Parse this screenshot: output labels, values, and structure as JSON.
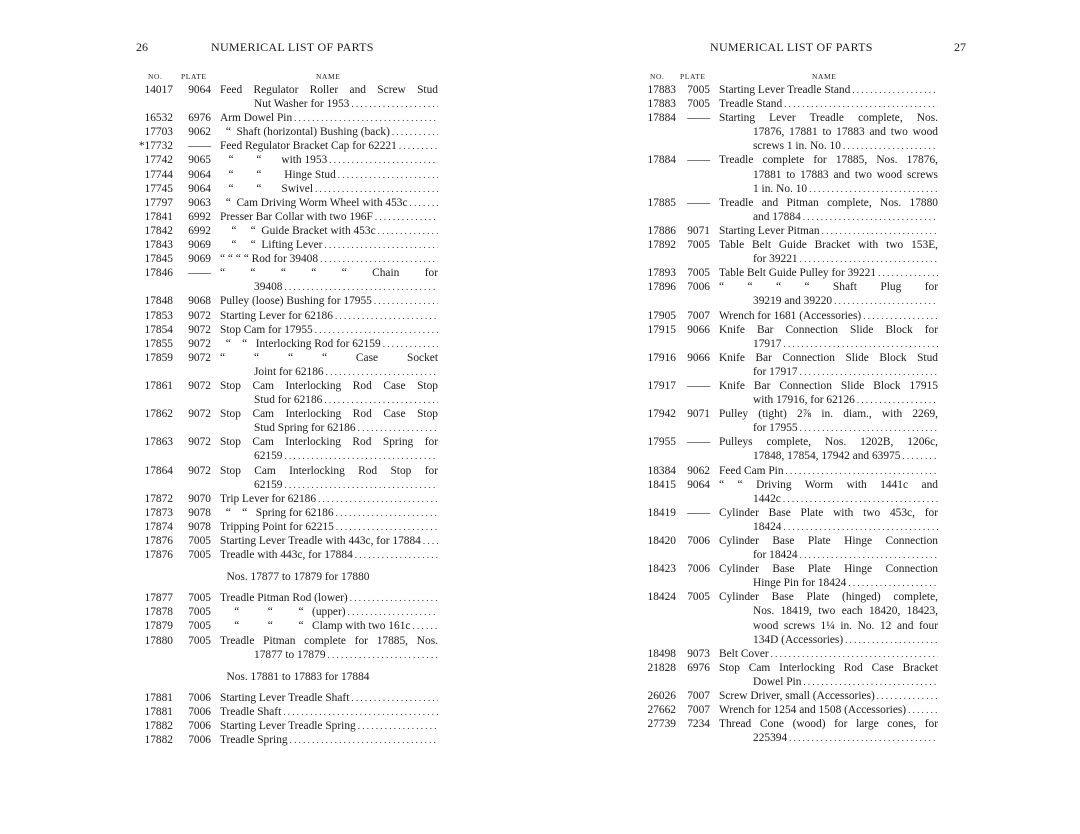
{
  "left": {
    "page_number": "26",
    "title": "NUMERICAL LIST OF PARTS",
    "headers": {
      "no": "NO.",
      "plate": "PLATE",
      "name": "NAME"
    },
    "rows": [
      {
        "no": "14017",
        "plate": "9064",
        "lines": [
          "Feed Regulator Roller and Screw Stud",
          "Nut Washer for 1953"
        ]
      },
      {
        "no": "16532",
        "plate": "6976",
        "lines": [
          "Arm Dowel Pin"
        ]
      },
      {
        "no": "17703",
        "plate": "9062",
        "lines": [
          "  “  Shaft (horizontal) Bushing (back)"
        ]
      },
      {
        "no": "*17732",
        "plate": "——",
        "lines": [
          "Feed Regulator Bracket Cap for 62221"
        ]
      },
      {
        "no": "17742",
        "plate": "9065",
        "lines": [
          "   “        “       with 1953"
        ]
      },
      {
        "no": "17744",
        "plate": "9064",
        "lines": [
          "   “        “        Hinge Stud"
        ]
      },
      {
        "no": "17745",
        "plate": "9064",
        "lines": [
          "   “        “       Swivel"
        ]
      },
      {
        "no": "17797",
        "plate": "9063",
        "lines": [
          "  “  Cam Driving Worm Wheel with 453c"
        ]
      },
      {
        "no": "17841",
        "plate": "6992",
        "lines": [
          "Presser Bar Collar with two 196F"
        ]
      },
      {
        "no": "17842",
        "plate": "6992",
        "lines": [
          "    “     “  Guide Bracket with 453c"
        ]
      },
      {
        "no": "17843",
        "plate": "9069",
        "lines": [
          "    “     “  Lifting Lever"
        ]
      },
      {
        "no": "17845",
        "plate": "9069",
        "lines": [
          "“ “ “ “ Rod for 39408"
        ]
      },
      {
        "no": "17846",
        "plate": "——",
        "lines": [
          "“ “ “ “ “ Chain for",
          "39408"
        ]
      },
      {
        "no": "17848",
        "plate": "9068",
        "lines": [
          "Pulley (loose) Bushing for 17955"
        ]
      },
      {
        "no": "17853",
        "plate": "9072",
        "lines": [
          "Starting Lever for 62186"
        ]
      },
      {
        "no": "17854",
        "plate": "9072",
        "lines": [
          "Stop Cam for 17955"
        ]
      },
      {
        "no": "17855",
        "plate": "9072",
        "lines": [
          "  “    “   Interlocking Rod for 62159"
        ]
      },
      {
        "no": "17859",
        "plate": "9072",
        "lines": [
          "“ “ “ “ Case Socket",
          "Joint for 62186"
        ]
      },
      {
        "no": "17861",
        "plate": "9072",
        "lines": [
          "Stop Cam Interlocking Rod Case Stop",
          "Stud for 62186"
        ]
      },
      {
        "no": "17862",
        "plate": "9072",
        "lines": [
          "Stop Cam Interlocking Rod Case Stop",
          "Stud Spring for 62186"
        ]
      },
      {
        "no": "17863",
        "plate": "9072",
        "lines": [
          "Stop Cam Interlocking Rod Spring for",
          "62159"
        ]
      },
      {
        "no": "17864",
        "plate": "9072",
        "lines": [
          "Stop Cam Interlocking Rod Stop for",
          "62159"
        ]
      },
      {
        "no": "17872",
        "plate": "9070",
        "lines": [
          "Trip Lever for 62186"
        ]
      },
      {
        "no": "17873",
        "plate": "9078",
        "lines": [
          "  “    “   Spring for 62186"
        ]
      },
      {
        "no": "17874",
        "plate": "9078",
        "lines": [
          "Tripping Point for 62215"
        ]
      },
      {
        "no": "17876",
        "plate": "7005",
        "lines": [
          "Starting Lever Treadle with 443c, for 17884"
        ]
      },
      {
        "no": "17876",
        "plate": "7005",
        "lines": [
          "Treadle with 443c, for 17884"
        ]
      },
      {
        "section": "Nos. 17877 to 17879 for 17880"
      },
      {
        "no": "17877",
        "plate": "7005",
        "lines": [
          "Treadle Pitman Rod (lower)"
        ]
      },
      {
        "no": "17878",
        "plate": "7005",
        "lines": [
          "     “          “         “   (upper)"
        ]
      },
      {
        "no": "17879",
        "plate": "7005",
        "lines": [
          "     “          “         “   Clamp with two 161c"
        ]
      },
      {
        "no": "17880",
        "plate": "7005",
        "lines": [
          "Treadle Pitman complete for 17885, Nos.",
          "17877 to 17879"
        ]
      },
      {
        "section": "Nos. 17881 to 17883 for 17884"
      },
      {
        "no": "17881",
        "plate": "7006",
        "lines": [
          "Starting Lever Treadle Shaft"
        ]
      },
      {
        "no": "17881",
        "plate": "7006",
        "lines": [
          "Treadle Shaft"
        ]
      },
      {
        "no": "17882",
        "plate": "7006",
        "lines": [
          "Starting Lever Treadle Spring"
        ]
      },
      {
        "no": "17882",
        "plate": "7006",
        "lines": [
          "Treadle Spring"
        ]
      }
    ]
  },
  "right": {
    "page_number": "27",
    "title": "NUMERICAL LIST OF PARTS",
    "headers": {
      "no": "NO.",
      "plate": "PLATE",
      "name": "NAME"
    },
    "rows": [
      {
        "no": "17883",
        "plate": "7005",
        "lines": [
          "Starting Lever Treadle Stand"
        ]
      },
      {
        "no": "17883",
        "plate": "7005",
        "lines": [
          "Treadle Stand"
        ]
      },
      {
        "no": "17884",
        "plate": "——",
        "lines": [
          "Starting Lever Treadle complete, Nos.",
          "17876, 17881 to 17883 and two wood",
          "screws 1 in. No. 10"
        ]
      },
      {
        "no": "17884",
        "plate": "——",
        "lines": [
          "Treadle complete for 17885, Nos. 17876,",
          "17881 to 17883 and two wood screws",
          "1 in. No. 10"
        ]
      },
      {
        "no": "17885",
        "plate": "——",
        "lines": [
          "Treadle and Pitman complete, Nos. 17880",
          "and 17884"
        ]
      },
      {
        "no": "17886",
        "plate": "9071",
        "lines": [
          "Starting Lever Pitman"
        ]
      },
      {
        "no": "17892",
        "plate": "7005",
        "lines": [
          "Table Belt Guide Bracket with two 153E,",
          "for 39221"
        ]
      },
      {
        "no": "17893",
        "plate": "7005",
        "lines": [
          "Table Belt Guide Pulley for 39221"
        ]
      },
      {
        "no": "17896",
        "plate": "7006",
        "lines": [
          "“ “ “ “ Shaft Plug for",
          "39219 and 39220"
        ]
      },
      {
        "no": "17905",
        "plate": "7007",
        "lines": [
          "Wrench for 1681 (Accessories)"
        ]
      },
      {
        "no": "17915",
        "plate": "9066",
        "lines": [
          "Knife Bar Connection Slide Block for",
          "17917"
        ]
      },
      {
        "no": "17916",
        "plate": "9066",
        "lines": [
          "Knife Bar Connection Slide Block Stud",
          "for 17917"
        ]
      },
      {
        "no": "17917",
        "plate": "——",
        "lines": [
          "Knife Bar Connection Slide Block 17915",
          "with 17916, for 62126"
        ]
      },
      {
        "no": "17942",
        "plate": "9071",
        "lines": [
          "Pulley (tight) 2⅞ in. diam., with 2269,",
          "for 17955"
        ]
      },
      {
        "no": "17955",
        "plate": "——",
        "lines": [
          "Pulleys complete, Nos. 1202B, 1206c,",
          "17848, 17854, 17942 and 63975"
        ]
      },
      {
        "no": "18384",
        "plate": "9062",
        "lines": [
          "Feed Cam Pin"
        ]
      },
      {
        "no": "18415",
        "plate": "9064",
        "lines": [
          "“ “ Driving Worm with 1441c and",
          "1442c"
        ]
      },
      {
        "no": "18419",
        "plate": "——",
        "lines": [
          "Cylinder Base Plate with two 453c, for",
          "18424"
        ]
      },
      {
        "no": "18420",
        "plate": "7006",
        "lines": [
          "Cylinder Base Plate Hinge Connection",
          "for 18424"
        ]
      },
      {
        "no": "18423",
        "plate": "7006",
        "lines": [
          "Cylinder Base Plate Hinge Connection",
          "Hinge Pin for 18424"
        ]
      },
      {
        "no": "18424",
        "plate": "7005",
        "lines": [
          "Cylinder Base Plate (hinged) complete,",
          "Nos. 18419, two each 18420, 18423, three",
          "wood screws 1¼ in. No. 12 and four",
          "134D (Accessories)"
        ]
      },
      {
        "no": "18498",
        "plate": "9073",
        "lines": [
          "Belt Cover"
        ]
      },
      {
        "no": "21828",
        "plate": "6976",
        "lines": [
          "Stop Cam Interlocking Rod Case Bracket",
          "Dowel Pin"
        ]
      },
      {
        "no": "26026",
        "plate": "7007",
        "lines": [
          "Screw Driver, small (Accessories)"
        ]
      },
      {
        "no": "27662",
        "plate": "7007",
        "lines": [
          "Wrench for 1254 and 1508 (Accessories)"
        ]
      },
      {
        "no": "27739",
        "plate": "7234",
        "lines": [
          "Thread Cone (wood) for large cones, for",
          "225394"
        ]
      }
    ]
  }
}
